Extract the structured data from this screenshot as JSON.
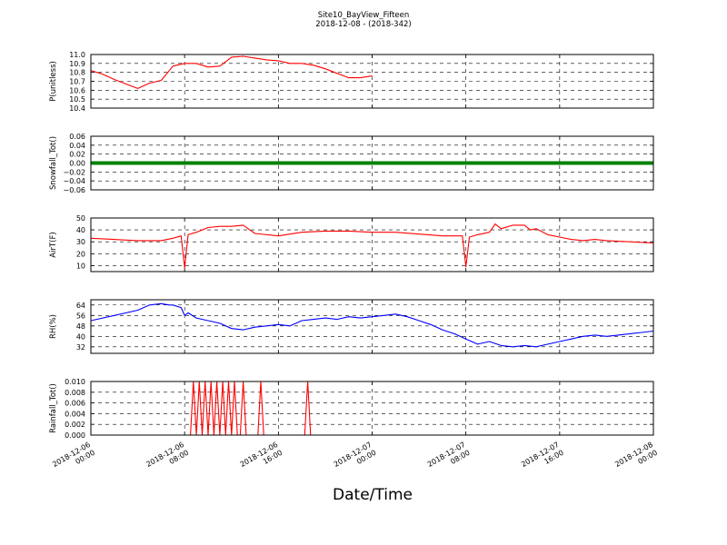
{
  "title": "Site10_BayView_Fifteen",
  "subtitle": "2018-12-08 - (2018-342)",
  "xlabel": "Date/Time",
  "colors": {
    "red": "#ff0000",
    "blue": "#0000ff",
    "green": "#008000"
  },
  "chart_data": [
    {
      "type": "line",
      "ylabel": "P(unitless)",
      "color": "#ff0000",
      "ylim": [
        10.4,
        11.0
      ],
      "yticks": [
        "11.0",
        "10.9",
        "10.8",
        "10.7",
        "10.6",
        "10.5",
        "10.4"
      ],
      "ytick_values": [
        11.0,
        10.9,
        10.8,
        10.7,
        10.6,
        10.5,
        10.4
      ],
      "x": [
        0,
        1,
        2,
        3,
        4,
        5,
        6,
        7,
        8,
        9,
        10,
        11,
        12,
        13,
        14,
        15,
        16,
        17,
        18,
        19,
        20,
        21,
        22,
        23,
        24
      ],
      "values": [
        10.82,
        10.78,
        10.72,
        10.67,
        10.62,
        10.68,
        10.71,
        10.87,
        10.9,
        10.9,
        10.86,
        10.87,
        10.97,
        10.98,
        10.96,
        10.94,
        10.93,
        10.9,
        10.9,
        10.88,
        10.84,
        10.79,
        10.74,
        10.74,
        10.76
      ]
    },
    {
      "type": "line",
      "ylabel": "Snowfall_Tot()",
      "color": "#008000",
      "ylim": [
        -0.06,
        0.06
      ],
      "yticks": [
        "0.06",
        "0.04",
        "0.02",
        "0.00",
        "−0.02",
        "−0.04",
        "−0.06"
      ],
      "ytick_values": [
        0.06,
        0.04,
        0.02,
        0.0,
        -0.02,
        -0.04,
        -0.06
      ],
      "x": [
        0,
        48
      ],
      "values": [
        0,
        0
      ]
    },
    {
      "type": "line",
      "ylabel": "AirT(F)",
      "color": "#ff0000",
      "ylim": [
        5,
        50
      ],
      "yticks": [
        "50",
        "40",
        "30",
        "20",
        "10"
      ],
      "ytick_values": [
        50,
        40,
        30,
        20,
        10
      ],
      "x": [
        0,
        2,
        4,
        6,
        7,
        7.7,
        8,
        8.3,
        9,
        10,
        11,
        12,
        13,
        14,
        16,
        18,
        20,
        22,
        24,
        26,
        30,
        31.7,
        32,
        32.3,
        33,
        34,
        34.5,
        35,
        36,
        37,
        37.5,
        38,
        39,
        40,
        41,
        42,
        43,
        44,
        46,
        48
      ],
      "values": [
        33,
        32,
        31,
        31,
        33,
        35,
        8,
        36,
        38,
        42,
        43,
        43,
        44,
        37,
        35,
        38,
        39,
        39,
        38,
        38,
        35,
        35,
        9,
        34,
        36,
        38,
        45,
        41,
        44,
        44,
        40,
        41,
        36,
        34,
        32,
        31,
        32,
        31,
        30,
        29
      ]
    },
    {
      "type": "line",
      "ylabel": "RH(%)",
      "color": "#0000ff",
      "ylim": [
        27,
        68
      ],
      "yticks": [
        "64",
        "56",
        "48",
        "40",
        "32"
      ],
      "ytick_values": [
        64,
        56,
        48,
        40,
        32
      ],
      "x": [
        0,
        2,
        4,
        5,
        6,
        6.7,
        7,
        7.7,
        8,
        8.3,
        9,
        10,
        11,
        12,
        13,
        14,
        15,
        16,
        17,
        18,
        19,
        20,
        21,
        22,
        23,
        24,
        25,
        26,
        27,
        28,
        29,
        30,
        31,
        32,
        33,
        34,
        35,
        36,
        37,
        38,
        39,
        40,
        41,
        42,
        43,
        44,
        45,
        46,
        47,
        48
      ],
      "values": [
        52,
        56,
        60,
        64,
        65,
        64,
        64,
        62,
        56,
        58,
        54,
        52,
        50,
        46,
        45,
        47,
        48,
        49,
        48,
        52,
        53,
        54,
        53,
        55,
        54,
        55,
        56,
        57,
        55,
        52,
        49,
        45,
        42,
        38,
        34,
        36,
        33,
        32,
        33,
        32,
        34,
        36,
        38,
        40,
        41,
        40,
        41,
        42,
        43,
        44
      ]
    },
    {
      "type": "line",
      "ylabel": "Rainfall_Tot()",
      "color": "#ff0000",
      "ylim": [
        0,
        0.01
      ],
      "yticks": [
        "0.010",
        "0.008",
        "0.006",
        "0.004",
        "0.002",
        "0.000"
      ],
      "ytick_values": [
        0.01,
        0.008,
        0.006,
        0.004,
        0.002,
        0.0
      ],
      "x": [
        0,
        8.5,
        8.75,
        9,
        9.25,
        9.5,
        9.75,
        10,
        10.25,
        10.5,
        10.75,
        11,
        11.25,
        11.5,
        11.75,
        12,
        12.25,
        12.5,
        12.75,
        13,
        13.25,
        14.25,
        14.5,
        14.75,
        18.25,
        18.5,
        18.75,
        48
      ],
      "values": [
        0,
        0,
        0.01,
        0,
        0.01,
        0,
        0.01,
        0,
        0.01,
        0,
        0.01,
        0,
        0.01,
        0,
        0.01,
        0,
        0.01,
        0,
        0,
        0.01,
        0,
        0,
        0.01,
        0,
        0,
        0.01,
        0,
        0
      ]
    }
  ],
  "x_axis": {
    "range": [
      0,
      48
    ],
    "ticks": [
      {
        "value": 0,
        "line1": "2018-12-06",
        "line2": "00:00"
      },
      {
        "value": 8,
        "line1": "2018-12-06",
        "line2": "08:00"
      },
      {
        "value": 16,
        "line1": "2018-12-06",
        "line2": "16:00"
      },
      {
        "value": 24,
        "line1": "2018-12-07",
        "line2": "00:00"
      },
      {
        "value": 32,
        "line1": "2018-12-07",
        "line2": "08:00"
      },
      {
        "value": 40,
        "line1": "2018-12-07",
        "line2": "16:00"
      },
      {
        "value": 48,
        "line1": "2018-12-08",
        "line2": "00:00"
      }
    ]
  }
}
